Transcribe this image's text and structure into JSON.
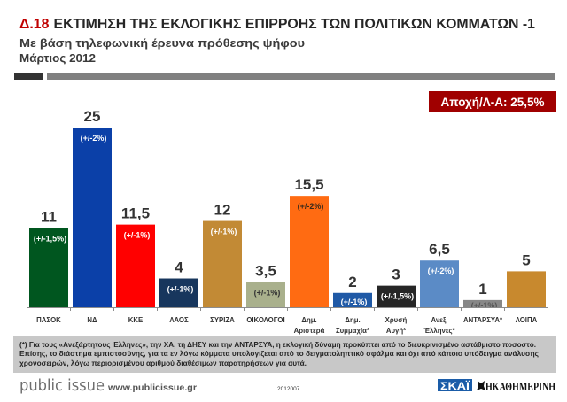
{
  "header": {
    "code": "Δ.18",
    "code_color": "#c00000",
    "title": "ΕΚΤΙΜΗΣΗ ΤΗΣ ΕΚΛΟΓΙΚΗΣ ΕΠΙΡΡΟΗΣ ΤΩΝ ΠΟΛΙΤΙΚΩΝ ΚΟΜΜΑΤΩΝ -1",
    "subtitle": "Με βάση τηλεφωνική έρευνα πρόθεσης ψήφου",
    "date": "Μάρτιος 2012"
  },
  "badge": {
    "text": "Αποχή/Λ-Α: 25,5%",
    "color": "#a00000"
  },
  "chart_data": {
    "type": "bar",
    "title": "Δ.18 ΕΚΤΙΜΗΣΗ ΤΗΣ ΕΚΛΟΓΙΚΗΣ ΕΠΙΡΡΟΗΣ ΤΩΝ ΠΟΛΙΤΙΚΩΝ ΚΟΜΜΑΤΩΝ -1",
    "subtitle": "Με βάση τηλεφωνική έρευνα πρόθεσης ψήφου",
    "xlabel": "",
    "ylabel": "",
    "ylim": [
      0,
      25
    ],
    "grid": false,
    "legend": "none",
    "categories": [
      "ΠΑΣΟΚ",
      "ΝΔ",
      "ΚΚΕ",
      "ΛΑΟΣ",
      "ΣΥΡΙΖΑ",
      "ΟΙΚΟΛΟΓΟΙ",
      "Δημ.\nΑριστερά",
      "Δημ.\nΣυμμαχία*",
      "Χρυσή\nΑυγή*",
      "Ανεξ.\nΈλληνες*",
      "ΑΝΤΑΡΣΥΑ*",
      "ΛΟΙΠΑ"
    ],
    "values": [
      11,
      25,
      11.5,
      4,
      12,
      3.5,
      15.5,
      2,
      3,
      6.5,
      1,
      5
    ],
    "value_labels": [
      "11",
      "25",
      "11,5",
      "4",
      "12",
      "3,5",
      "15,5",
      "2",
      "3",
      "6,5",
      "1",
      "5"
    ],
    "error_margins": [
      "(+/-1,5%)",
      "(+/-2%)",
      "(+/-1%)",
      "(+/-1%)",
      "(+/-1%)",
      "(+/-1%)",
      "(+/-2%)",
      "(+/-1%)",
      "(+/-1,5%)",
      "(+/-2%)",
      "(+/-1%)",
      null
    ],
    "colors": [
      "#00561f",
      "#0b40a8",
      "#ff0000",
      "#17365d",
      "#c28a35",
      "#a9b08c",
      "#ff6b12",
      "#1f59a6",
      "#262626",
      "#5b8bc6",
      "#878787",
      "#c8892e"
    ],
    "error_label_colors": [
      "#ffffff",
      "#ffffff",
      "#ffffff",
      "#ffffff",
      "#ffffff",
      "#333333",
      "#3a2a1a",
      "#ffffff",
      "#ffffff",
      "#ffffff",
      "#555555",
      "#ffffff"
    ]
  },
  "footnote": {
    "lines": [
      "(*) Για τους «Ανεξάρτητους Έλληνες», την ΧΑ, τη ΔΗΣΥ και την ΑΝΤΑΡΣΥΑ, η εκλογική δύναμη προκύπτει από το διευκρινισμένο αστάθμιστο ποσοστό.",
      "Επίσης, το διάστημα εμπιστοσύνης, για τα εν λόγω κόμματα υπολογίζεται από το δειγματοληπτικό σφάλμα και όχι από κάποιο υπόδειγμα ανάλυσης",
      "χρονοσειρών, λόγω περιορισμένου αριθμού διαθέσιμων παρατηρήσεων για αυτά."
    ]
  },
  "footer": {
    "brand": "public issue",
    "url": "www.publicissue.gr",
    "code": "2012007",
    "skai": "ΣΚΑΪ",
    "skai_color": "#1a5ca8",
    "kathimerini": "ΗΚΑΘΗΜΕΡΙΝΗ"
  }
}
